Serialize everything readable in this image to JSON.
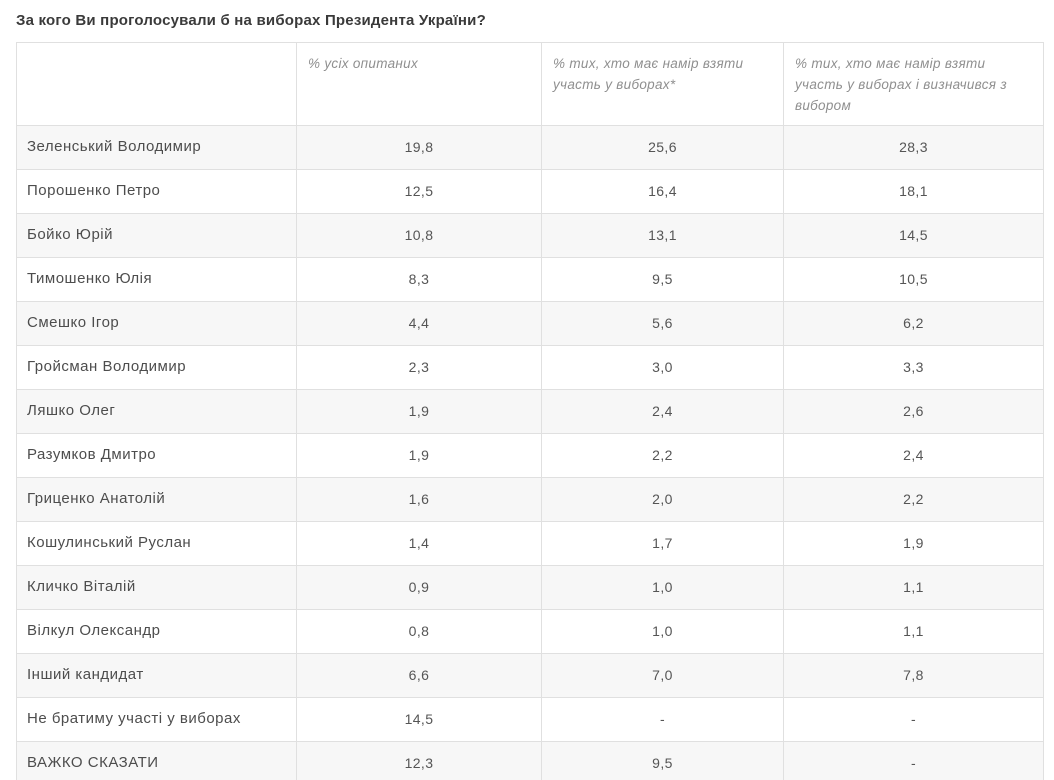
{
  "page": {
    "title": "За кого Ви проголосували б на виборах Президента України?"
  },
  "chart_data": {
    "type": "table",
    "title": "За кого Ви проголосували б на виборах Президента України?",
    "columns": [
      "",
      "% усіх опитаних",
      "% тих, хто має намір взяти участь у виборах*",
      "% тих, хто має намір взяти участь у виборах і визначився з вибором"
    ],
    "rows": [
      {
        "label": "Зеленський Володимир",
        "values": [
          "19,8",
          "25,6",
          "28,3"
        ]
      },
      {
        "label": "Порошенко Петро",
        "values": [
          "12,5",
          "16,4",
          "18,1"
        ]
      },
      {
        "label": "Бойко Юрій",
        "values": [
          "10,8",
          "13,1",
          "14,5"
        ]
      },
      {
        "label": "Тимошенко Юлія",
        "values": [
          "8,3",
          "9,5",
          "10,5"
        ]
      },
      {
        "label": "Смешко Ігор",
        "values": [
          "4,4",
          "5,6",
          "6,2"
        ]
      },
      {
        "label": "Гройсман Володимир",
        "values": [
          "2,3",
          "3,0",
          "3,3"
        ]
      },
      {
        "label": "Ляшко Олег",
        "values": [
          "1,9",
          "2,4",
          "2,6"
        ]
      },
      {
        "label": "Разумков Дмитро",
        "values": [
          "1,9",
          "2,2",
          "2,4"
        ]
      },
      {
        "label": "Гриценко Анатолій",
        "values": [
          "1,6",
          "2,0",
          "2,2"
        ]
      },
      {
        "label": "Кошулинський Руслан",
        "values": [
          "1,4",
          "1,7",
          "1,9"
        ]
      },
      {
        "label": "Кличко Віталій",
        "values": [
          "0,9",
          "1,0",
          "1,1"
        ]
      },
      {
        "label": "Вілкул Олександр",
        "values": [
          "0,8",
          "1,0",
          "1,1"
        ]
      },
      {
        "label": "Інший кандидат",
        "values": [
          "6,6",
          "7,0",
          "7,8"
        ]
      },
      {
        "label": "Не братиму участі у виборах",
        "values": [
          "14,5",
          "-",
          "-"
        ]
      },
      {
        "label": "ВАЖКО СКАЗАТИ",
        "values": [
          "12,3",
          "9,5",
          "-"
        ]
      }
    ],
    "layout": {
      "stripe_color": "#f7f7f7",
      "border_color": "#e0e0e0",
      "header_text_color": "#8f8f8f",
      "body_text_color": "#4d4d4d",
      "title_color": "#3a3a3a"
    }
  }
}
